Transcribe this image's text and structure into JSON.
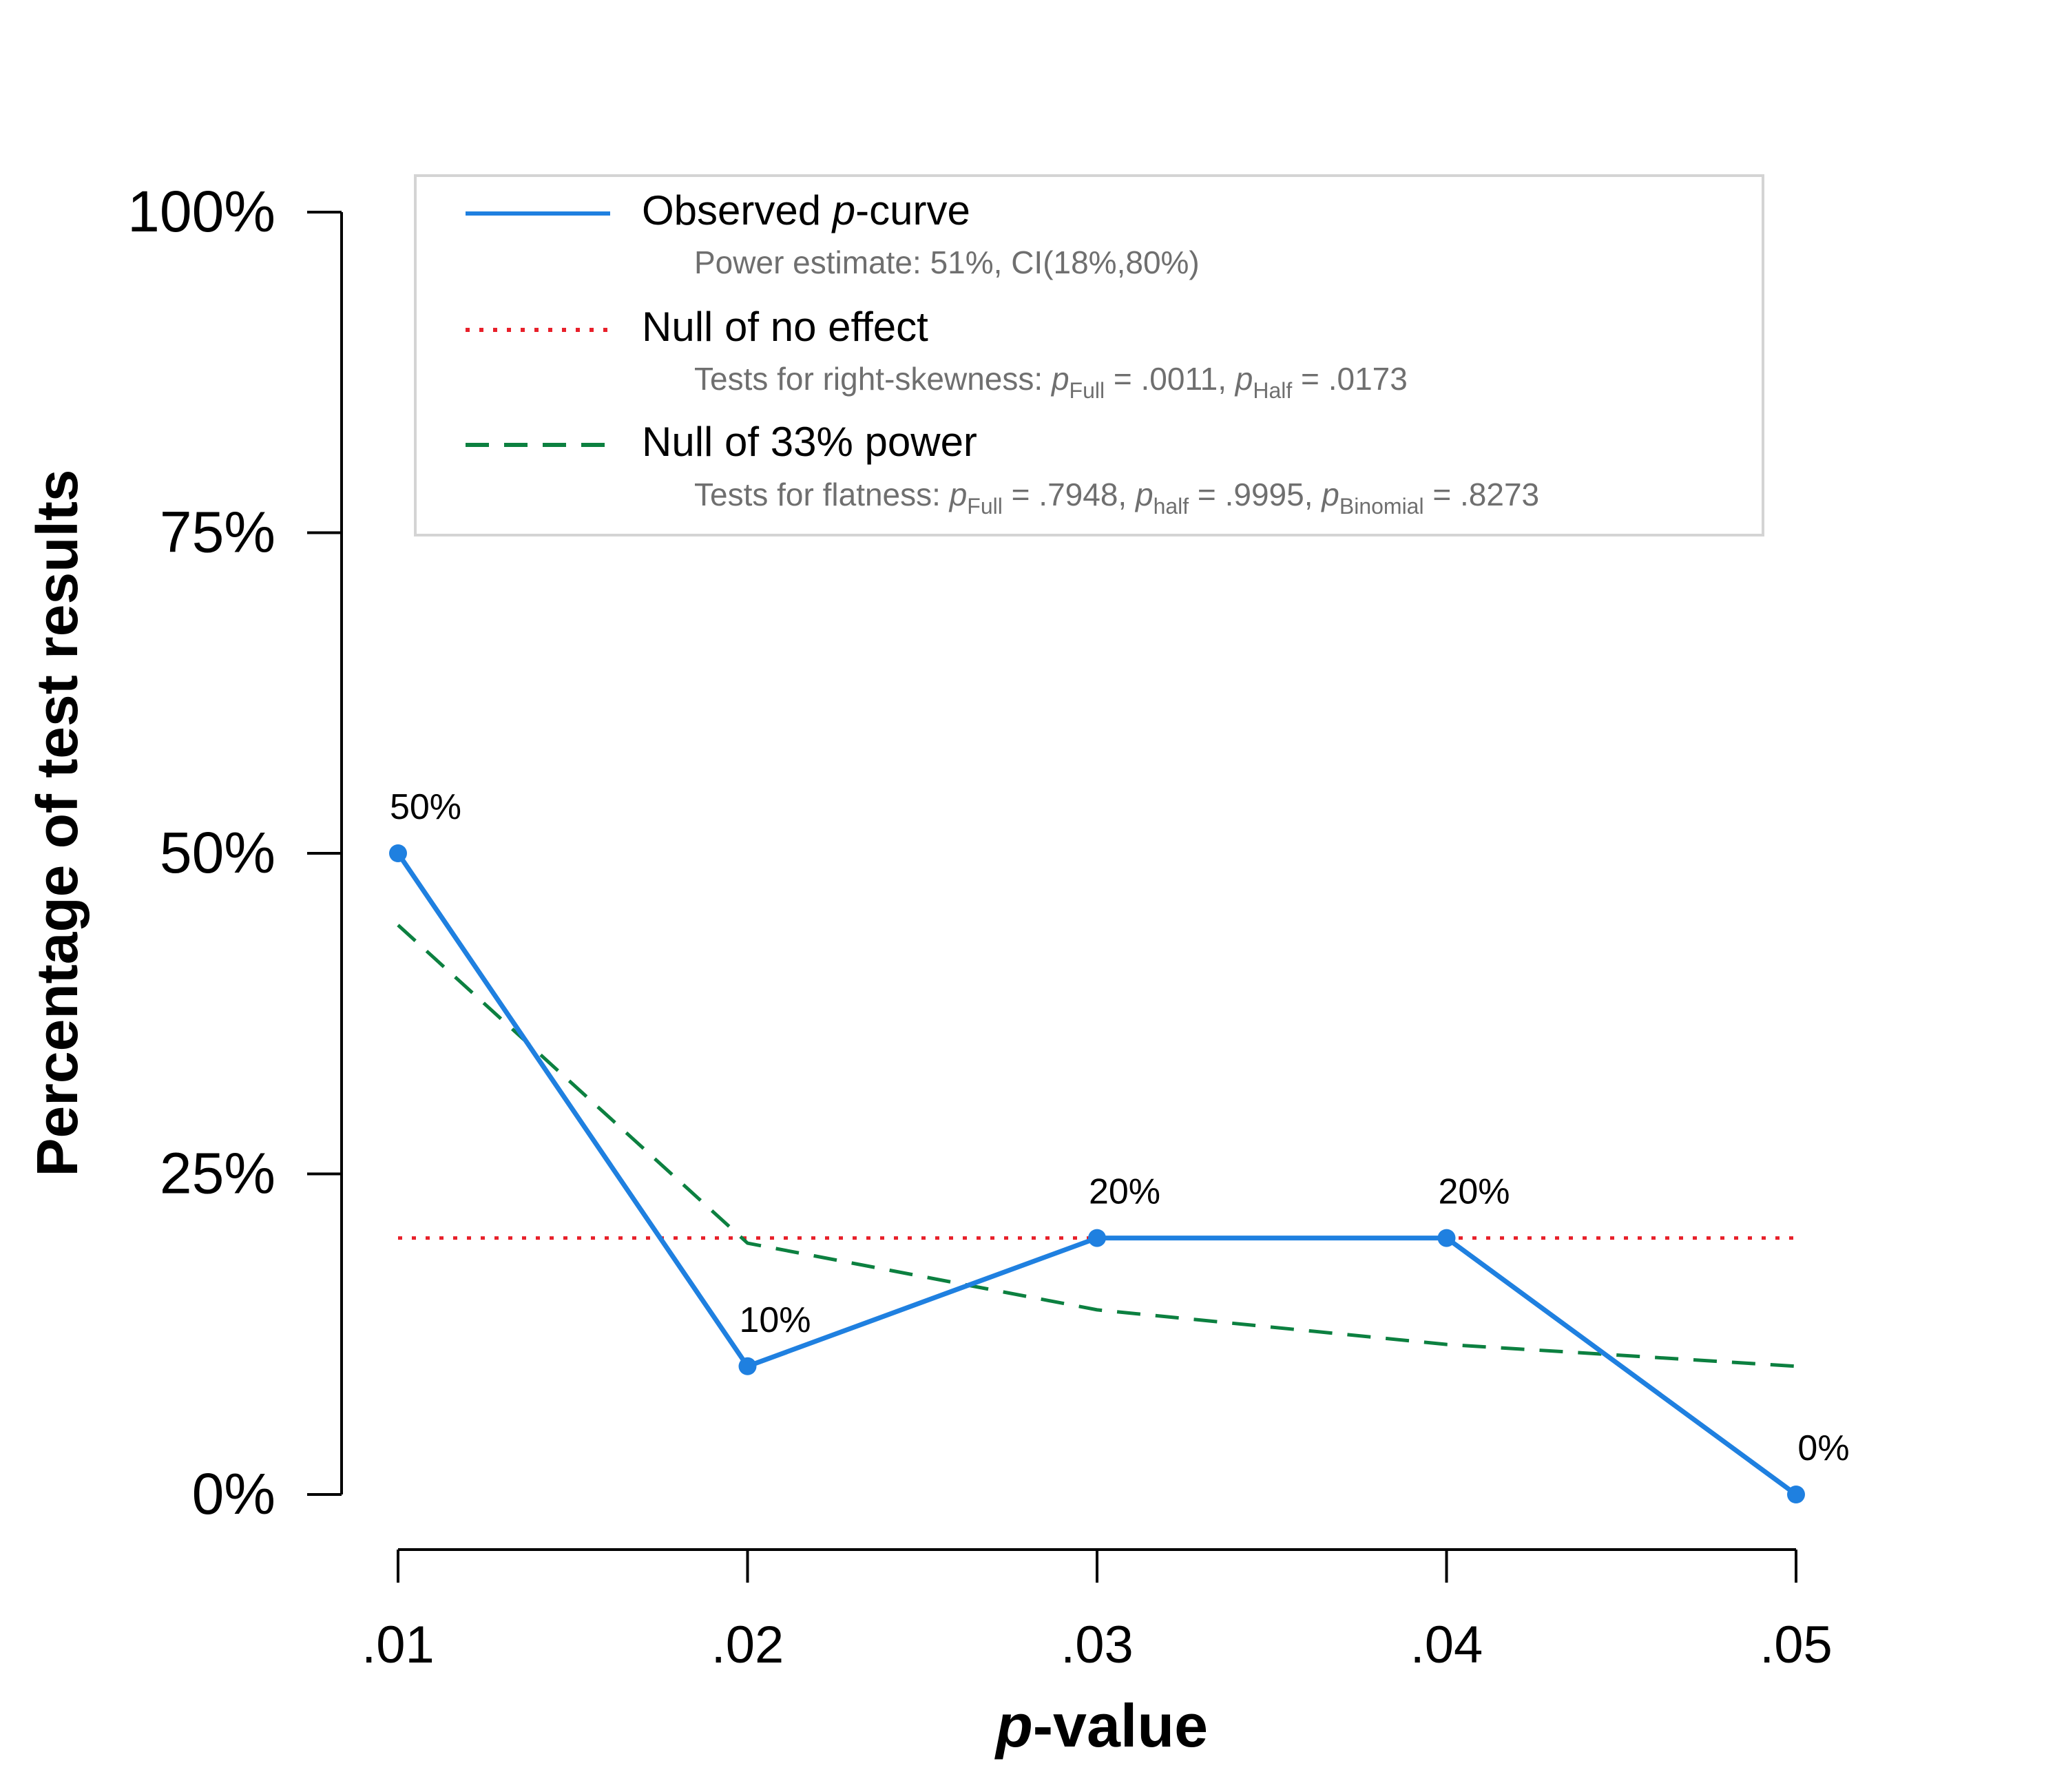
{
  "chart_data": {
    "type": "line",
    "title": "",
    "xlabel_italic": "p",
    "xlabel_rest": "-value",
    "ylabel": "Percentage of test results",
    "categories": [
      ".01",
      ".02",
      ".03",
      ".04",
      ".05"
    ],
    "x": [
      0.01,
      0.02,
      0.03,
      0.04,
      0.05
    ],
    "xlim": [
      0.01,
      0.05
    ],
    "ylim": [
      0,
      100
    ],
    "yticks": [
      0,
      25,
      50,
      75,
      100
    ],
    "ytick_labels": [
      "0%",
      "25%",
      "50%",
      "75%",
      "100%"
    ],
    "series": [
      {
        "name": "Observed p-curve",
        "style": "solid",
        "color": "#1f80e0",
        "values": [
          50,
          10,
          20,
          20,
          0
        ],
        "data_labels": [
          "50%",
          "10%",
          "20%",
          "20%",
          "0%"
        ]
      },
      {
        "name": "Null of no effect",
        "style": "dotted",
        "color": "#e8202a",
        "values": [
          20,
          20,
          20,
          20,
          20
        ]
      },
      {
        "name": "Null of 33% power",
        "style": "dashed",
        "color": "#0c8040",
        "values": [
          44.4,
          19.6,
          14.4,
          11.7,
          10.0
        ]
      }
    ],
    "legend": {
      "position": "top",
      "entries": [
        {
          "title_prefix": "Observed ",
          "title_italic": "p",
          "title_suffix": "-curve",
          "subtitle_text": "Power estimate: 51%, CI(18%,80%)"
        },
        {
          "title": "Null of no effect",
          "sub_lead": "Tests for right-skewness: ",
          "sub_p1": "p",
          "sub_p1_sub": "Full",
          "sub_p1_val": " = .0011,  ",
          "sub_p2": "p",
          "sub_p2_sub": "Half",
          "sub_p2_val": " = .0173"
        },
        {
          "title": "Null of 33% power",
          "sub_lead": "Tests for flatness: ",
          "sub_p1": "p",
          "sub_p1_sub": "Full",
          "sub_p1_val": " = .7948,  ",
          "sub_p2": "p",
          "sub_p2_sub": "half",
          "sub_p2_val": " = .9995,  ",
          "sub_p3": "p",
          "sub_p3_sub": "Binomial",
          "sub_p3_val": " = .8273"
        }
      ]
    }
  }
}
